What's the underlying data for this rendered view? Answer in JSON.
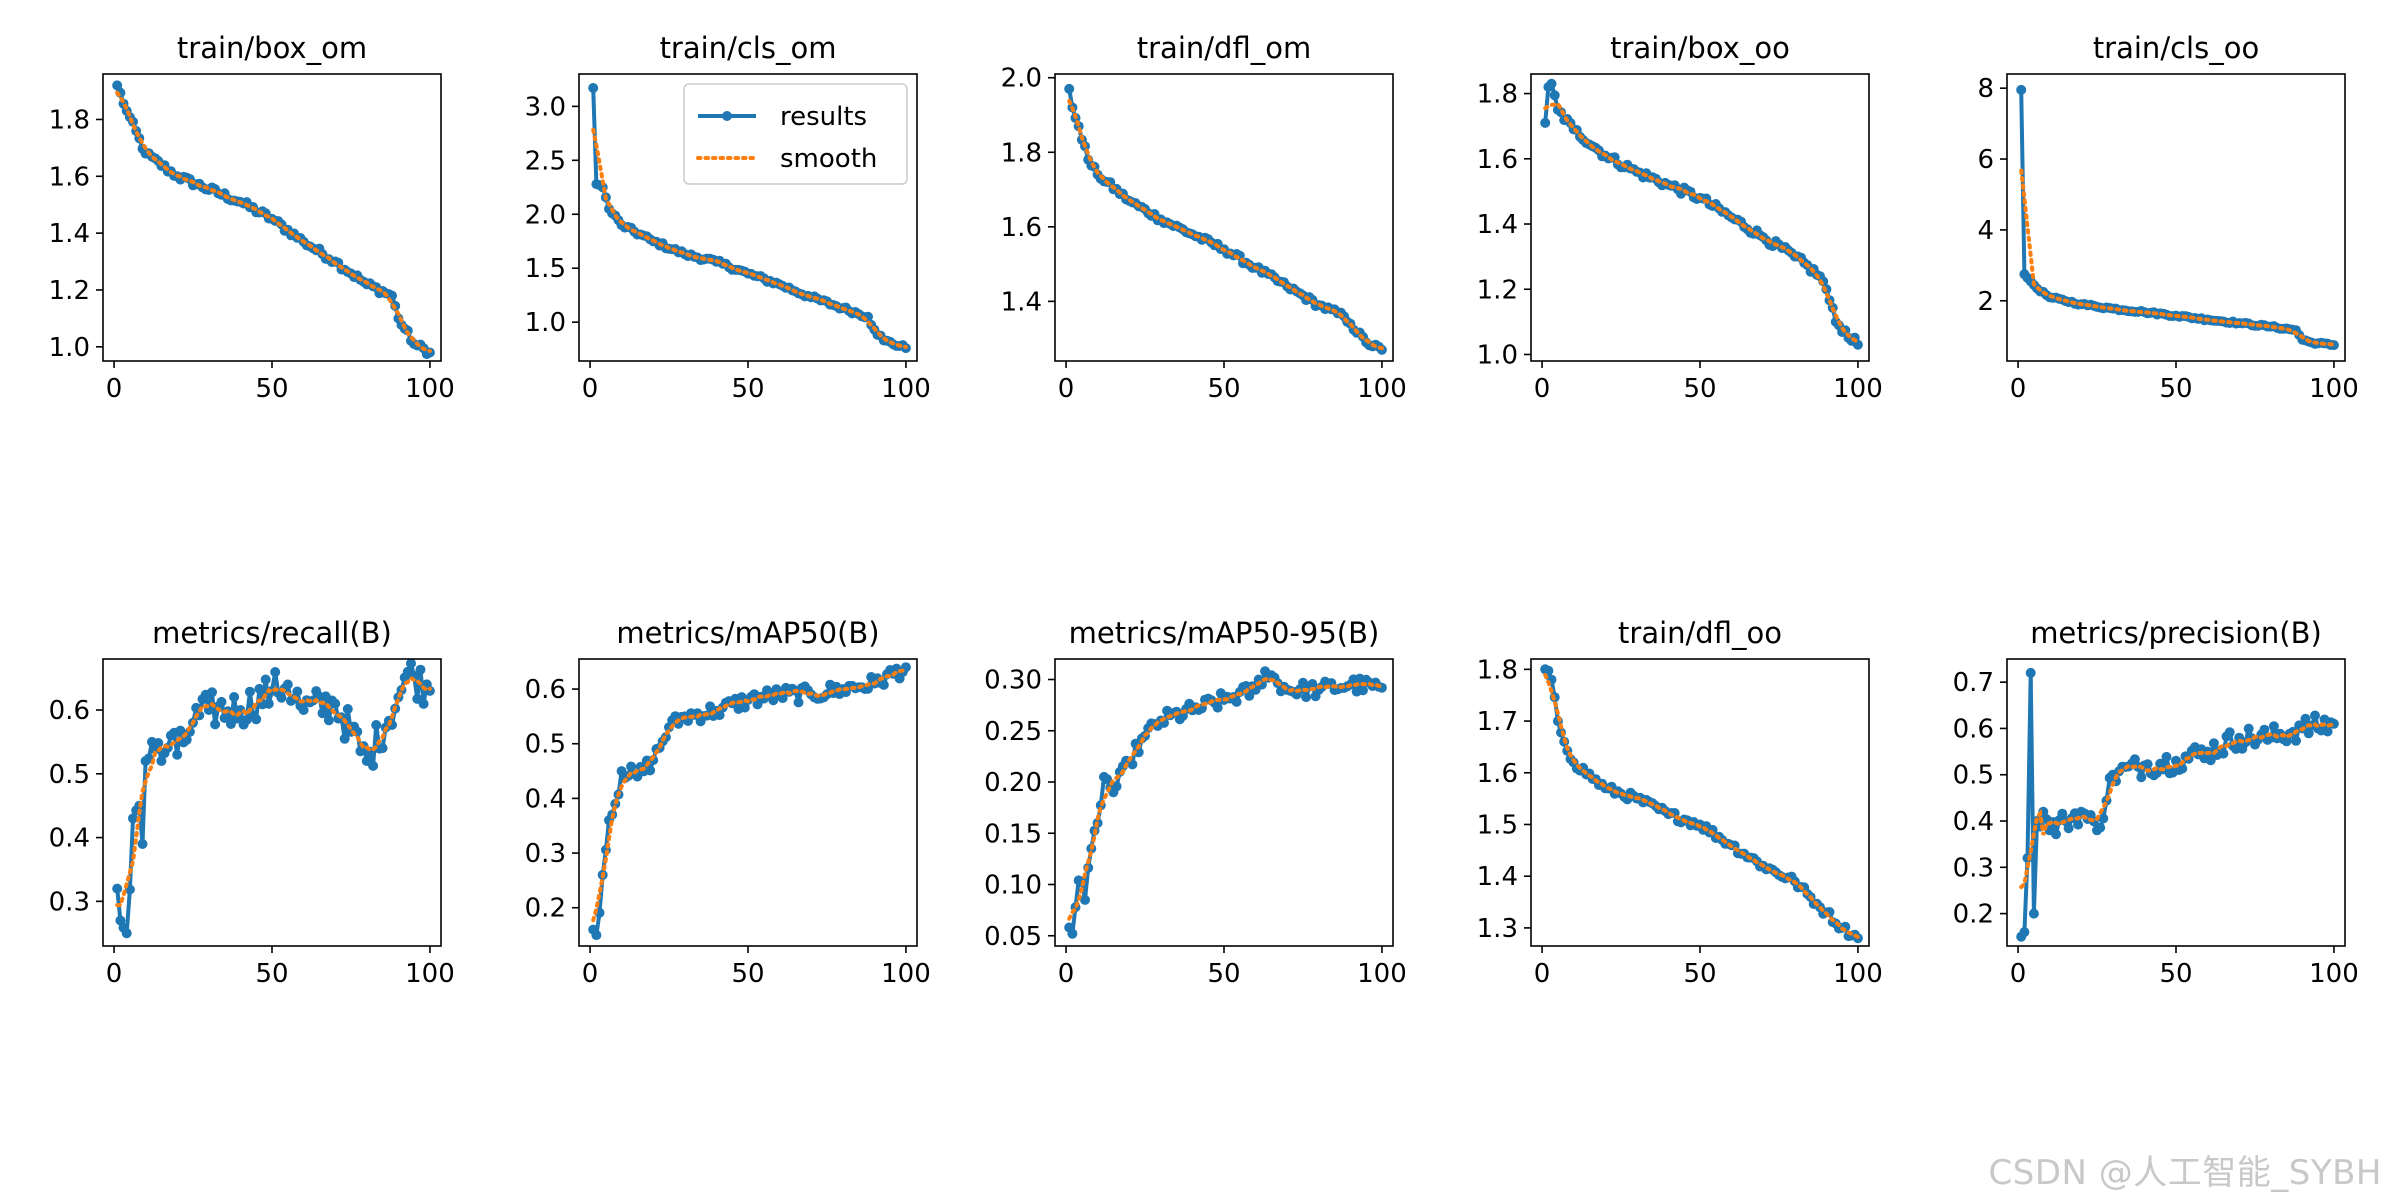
{
  "watermark": "CSDN @人工智能_SYBH",
  "colors": {
    "results": "#1f77b4",
    "smooth": "#ff7f0e",
    "axes": "#000000",
    "background": "#ffffff"
  },
  "legend": {
    "panel": 1,
    "location": "upper-right",
    "entries": [
      "results",
      "smooth"
    ]
  },
  "chart_data": [
    {
      "type": "line",
      "title": "train/box_om",
      "xlabel": "",
      "ylabel": "",
      "xlim": [
        -3.5,
        103.5
      ],
      "ylim": [
        0.95,
        1.96
      ],
      "xticks": [
        0,
        50,
        100
      ],
      "yticks": [
        1.0,
        1.2,
        1.4,
        1.6,
        1.8
      ],
      "ytick_decimals": 1,
      "series": [
        {
          "name": "results",
          "shape": "decay",
          "start": 1.92,
          "end": 0.98,
          "noise": 0.012,
          "points": [
            [
              1,
              1.92
            ],
            [
              4,
              1.83
            ],
            [
              10,
              1.68
            ],
            [
              20,
              1.6
            ],
            [
              40,
              1.51
            ],
            [
              50,
              1.45
            ],
            [
              60,
              1.37
            ],
            [
              70,
              1.3
            ],
            [
              80,
              1.22
            ],
            [
              88,
              1.18
            ],
            [
              90,
              1.1
            ],
            [
              95,
              1.01
            ],
            [
              100,
              0.98
            ]
          ]
        }
      ]
    },
    {
      "type": "line",
      "title": "train/cls_om",
      "xlabel": "",
      "ylabel": "",
      "xlim": [
        -3.5,
        103.5
      ],
      "ylim": [
        0.64,
        3.3
      ],
      "xticks": [
        0,
        50,
        100
      ],
      "yticks": [
        1.0,
        1.5,
        2.0,
        2.5,
        3.0
      ],
      "ytick_decimals": 1,
      "series": [
        {
          "name": "results",
          "shape": "spike-decay",
          "start": 3.17,
          "end": 0.76,
          "noise": 0.02,
          "points": [
            [
              1,
              3.17
            ],
            [
              2,
              2.28
            ],
            [
              4,
              2.25
            ],
            [
              6,
              2.05
            ],
            [
              10,
              1.9
            ],
            [
              20,
              1.75
            ],
            [
              30,
              1.63
            ],
            [
              40,
              1.56
            ],
            [
              50,
              1.45
            ],
            [
              60,
              1.35
            ],
            [
              70,
              1.23
            ],
            [
              80,
              1.13
            ],
            [
              88,
              1.05
            ],
            [
              90,
              0.93
            ],
            [
              93,
              0.83
            ],
            [
              100,
              0.76
            ]
          ]
        }
      ]
    },
    {
      "type": "line",
      "title": "train/dfl_om",
      "xlabel": "",
      "ylabel": "",
      "xlim": [
        -3.5,
        103.5
      ],
      "ylim": [
        1.24,
        2.01
      ],
      "xticks": [
        0,
        50,
        100
      ],
      "yticks": [
        1.4,
        1.6,
        1.8,
        2.0
      ],
      "ytick_decimals": 1,
      "series": [
        {
          "name": "results",
          "shape": "decay",
          "start": 1.97,
          "end": 1.27,
          "noise": 0.008,
          "points": [
            [
              1,
              1.97
            ],
            [
              2,
              1.92
            ],
            [
              4,
              1.87
            ],
            [
              7,
              1.78
            ],
            [
              10,
              1.74
            ],
            [
              20,
              1.67
            ],
            [
              30,
              1.62
            ],
            [
              40,
              1.58
            ],
            [
              50,
              1.54
            ],
            [
              60,
              1.49
            ],
            [
              70,
              1.44
            ],
            [
              80,
              1.39
            ],
            [
              88,
              1.36
            ],
            [
              90,
              1.34
            ],
            [
              95,
              1.29
            ],
            [
              100,
              1.27
            ]
          ]
        }
      ]
    },
    {
      "type": "line",
      "title": "train/box_oo",
      "xlabel": "",
      "ylabel": "",
      "xlim": [
        -3.5,
        103.5
      ],
      "ylim": [
        0.98,
        1.86
      ],
      "xticks": [
        0,
        50,
        100
      ],
      "yticks": [
        1.0,
        1.2,
        1.4,
        1.6,
        1.8
      ],
      "ytick_decimals": 1,
      "series": [
        {
          "name": "results",
          "shape": "decay",
          "start": 1.71,
          "end": 1.03,
          "noise": 0.012,
          "points": [
            [
              1,
              1.71
            ],
            [
              2,
              1.82
            ],
            [
              3,
              1.83
            ],
            [
              5,
              1.75
            ],
            [
              10,
              1.69
            ],
            [
              20,
              1.61
            ],
            [
              30,
              1.56
            ],
            [
              40,
              1.52
            ],
            [
              50,
              1.48
            ],
            [
              60,
              1.42
            ],
            [
              70,
              1.36
            ],
            [
              80,
              1.3
            ],
            [
              88,
              1.24
            ],
            [
              90,
              1.2
            ],
            [
              93,
              1.1
            ],
            [
              100,
              1.03
            ]
          ]
        }
      ]
    },
    {
      "type": "line",
      "title": "train/cls_oo",
      "xlabel": "",
      "ylabel": "",
      "xlim": [
        -3.5,
        103.5
      ],
      "ylim": [
        0.3,
        8.4
      ],
      "xticks": [
        0,
        50,
        100
      ],
      "yticks": [
        2,
        4,
        6,
        8
      ],
      "ytick_decimals": 0,
      "series": [
        {
          "name": "results",
          "shape": "spike-decay",
          "start": 7.95,
          "end": 0.75,
          "noise": 0.03,
          "points": [
            [
              1,
              7.95
            ],
            [
              2,
              2.75
            ],
            [
              4,
              2.55
            ],
            [
              6,
              2.35
            ],
            [
              10,
              2.1
            ],
            [
              20,
              1.9
            ],
            [
              30,
              1.78
            ],
            [
              40,
              1.68
            ],
            [
              50,
              1.58
            ],
            [
              60,
              1.47
            ],
            [
              70,
              1.37
            ],
            [
              80,
              1.27
            ],
            [
              88,
              1.17
            ],
            [
              90,
              0.9
            ],
            [
              93,
              0.82
            ],
            [
              100,
              0.75
            ]
          ]
        }
      ]
    },
    {
      "type": "line",
      "title": "metrics/recall(B)",
      "xlabel": "",
      "ylabel": "",
      "xlim": [
        -3.5,
        103.5
      ],
      "ylim": [
        0.23,
        0.68
      ],
      "xticks": [
        0,
        50,
        100
      ],
      "yticks": [
        0.3,
        0.4,
        0.5,
        0.6
      ],
      "ytick_decimals": 1,
      "series": [
        {
          "name": "results",
          "shape": "rise",
          "start": 0.32,
          "end": 0.63,
          "noise": 0.03,
          "points": [
            [
              1,
              0.32
            ],
            [
              2,
              0.27
            ],
            [
              4,
              0.25
            ],
            [
              6,
              0.43
            ],
            [
              8,
              0.45
            ],
            [
              9,
              0.39
            ],
            [
              10,
              0.52
            ],
            [
              12,
              0.55
            ],
            [
              15,
              0.52
            ],
            [
              18,
              0.56
            ],
            [
              20,
              0.53
            ],
            [
              25,
              0.58
            ],
            [
              30,
              0.6
            ],
            [
              40,
              0.6
            ],
            [
              50,
              0.63
            ],
            [
              55,
              0.64
            ],
            [
              60,
              0.6
            ],
            [
              70,
              0.61
            ],
            [
              80,
              0.52
            ],
            [
              90,
              0.62
            ],
            [
              93,
              0.66
            ],
            [
              100,
              0.63
            ]
          ]
        }
      ]
    },
    {
      "type": "line",
      "title": "metrics/mAP50(B)",
      "xlabel": "",
      "ylabel": "",
      "xlim": [
        -3.5,
        103.5
      ],
      "ylim": [
        0.13,
        0.655
      ],
      "xticks": [
        0,
        50,
        100
      ],
      "yticks": [
        0.2,
        0.3,
        0.4,
        0.5,
        0.6
      ],
      "ytick_decimals": 1,
      "series": [
        {
          "name": "results",
          "shape": "rise",
          "start": 0.16,
          "end": 0.64,
          "noise": 0.015,
          "points": [
            [
              1,
              0.16
            ],
            [
              2,
              0.15
            ],
            [
              4,
              0.26
            ],
            [
              6,
              0.36
            ],
            [
              8,
              0.39
            ],
            [
              10,
              0.45
            ],
            [
              15,
              0.44
            ],
            [
              20,
              0.47
            ],
            [
              25,
              0.53
            ],
            [
              30,
              0.55
            ],
            [
              40,
              0.56
            ],
            [
              50,
              0.58
            ],
            [
              60,
              0.59
            ],
            [
              70,
              0.59
            ],
            [
              80,
              0.6
            ],
            [
              90,
              0.61
            ],
            [
              100,
              0.64
            ]
          ]
        }
      ]
    },
    {
      "type": "line",
      "title": "metrics/mAP50-95(B)",
      "xlabel": "",
      "ylabel": "",
      "xlim": [
        -3.5,
        103.5
      ],
      "ylim": [
        0.04,
        0.32
      ],
      "xticks": [
        0,
        50,
        100
      ],
      "yticks": [
        0.05,
        0.1,
        0.15,
        0.2,
        0.25,
        0.3
      ],
      "ytick_decimals": 2,
      "series": [
        {
          "name": "results",
          "shape": "rise",
          "start": 0.058,
          "end": 0.292,
          "noise": 0.008,
          "points": [
            [
              1,
              0.058
            ],
            [
              2,
              0.052
            ],
            [
              4,
              0.104
            ],
            [
              6,
              0.085
            ],
            [
              8,
              0.135
            ],
            [
              10,
              0.16
            ],
            [
              12,
              0.205
            ],
            [
              15,
              0.19
            ],
            [
              20,
              0.22
            ],
            [
              25,
              0.245
            ],
            [
              30,
              0.26
            ],
            [
              40,
              0.27
            ],
            [
              50,
              0.28
            ],
            [
              60,
              0.29
            ],
            [
              63,
              0.308
            ],
            [
              70,
              0.29
            ],
            [
              80,
              0.29
            ],
            [
              90,
              0.295
            ],
            [
              100,
              0.292
            ]
          ]
        }
      ]
    },
    {
      "type": "line",
      "title": "train/dfl_oo",
      "xlabel": "",
      "ylabel": "",
      "xlim": [
        -3.5,
        103.5
      ],
      "ylim": [
        1.265,
        1.82
      ],
      "xticks": [
        0,
        50,
        100
      ],
      "yticks": [
        1.3,
        1.4,
        1.5,
        1.6,
        1.7,
        1.8
      ],
      "ytick_decimals": 1,
      "series": [
        {
          "name": "results",
          "shape": "decay",
          "start": 1.8,
          "end": 1.28,
          "noise": 0.008,
          "points": [
            [
              1,
              1.8
            ],
            [
              3,
              1.78
            ],
            [
              5,
              1.7
            ],
            [
              7,
              1.66
            ],
            [
              10,
              1.62
            ],
            [
              20,
              1.57
            ],
            [
              30,
              1.55
            ],
            [
              40,
              1.52
            ],
            [
              50,
              1.5
            ],
            [
              60,
              1.46
            ],
            [
              70,
              1.42
            ],
            [
              80,
              1.39
            ],
            [
              88,
              1.34
            ],
            [
              90,
              1.33
            ],
            [
              95,
              1.3
            ],
            [
              100,
              1.28
            ]
          ]
        }
      ]
    },
    {
      "type": "line",
      "title": "metrics/precision(B)",
      "xlabel": "",
      "ylabel": "",
      "xlim": [
        -3.5,
        103.5
      ],
      "ylim": [
        0.13,
        0.75
      ],
      "xticks": [
        0,
        50,
        100
      ],
      "yticks": [
        0.2,
        0.3,
        0.4,
        0.5,
        0.6,
        0.7
      ],
      "ytick_decimals": 1,
      "series": [
        {
          "name": "results",
          "shape": "rise",
          "start": 0.15,
          "end": 0.61,
          "noise": 0.025,
          "points": [
            [
              1,
              0.15
            ],
            [
              2,
              0.16
            ],
            [
              3,
              0.32
            ],
            [
              4,
              0.72
            ],
            [
              5,
              0.2
            ],
            [
              6,
              0.4
            ],
            [
              8,
              0.42
            ],
            [
              10,
              0.38
            ],
            [
              15,
              0.4
            ],
            [
              20,
              0.42
            ],
            [
              25,
              0.38
            ],
            [
              30,
              0.5
            ],
            [
              40,
              0.52
            ],
            [
              50,
              0.53
            ],
            [
              60,
              0.55
            ],
            [
              70,
              0.58
            ],
            [
              80,
              0.58
            ],
            [
              90,
              0.6
            ],
            [
              100,
              0.61
            ]
          ]
        }
      ]
    }
  ]
}
